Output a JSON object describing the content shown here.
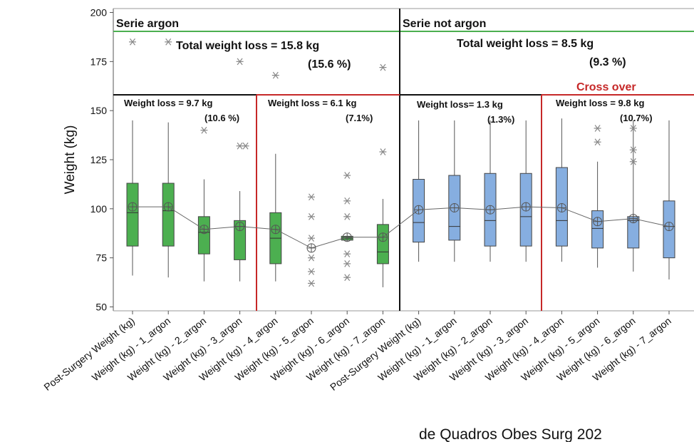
{
  "chart_data": {
    "type": "box",
    "ylabel": "Weight (kg)",
    "ylim": [
      48,
      202
    ],
    "yticks": [
      50,
      75,
      100,
      125,
      150,
      175,
      200
    ],
    "categories": [
      "Post-Surgery Weight (kg)",
      "Weight (kg) - 1_argon",
      "Weight (kg) - 2_argon",
      "Weight (kg) - 3_argon",
      "Weight (kg) - 4_argon",
      "Weight (kg) - 5_argon",
      "Weight (kg) - 6_argon",
      "Weight (kg) - 7_argon",
      "Post-Surgery Weight (kg)",
      "Weight (kg) - 1_argon",
      "Weight (kg) - 2_argon",
      "Weight (kg) - 3_argon",
      "Weight (kg) - 4_argon",
      "Weight (kg) - 5_argon",
      "Weight (kg) - 6_argon",
      "Weight (kg) - 7_argon"
    ],
    "colors": {
      "argon_box": "#4CAF50",
      "not_argon_box": "#86AEE0",
      "green_line": "#4CAF50",
      "red_line": "#C62828",
      "black_line": "#111111",
      "whisker": "#555555",
      "outlier": "#888888",
      "mean_line": "#666666",
      "cross_over_text": "#C62828"
    },
    "boxes": [
      {
        "group": "argon",
        "wlo": 66,
        "q1": 81,
        "median": 98,
        "q3": 113,
        "whi": 145,
        "mean": 101,
        "outliers": [
          185
        ]
      },
      {
        "group": "argon",
        "wlo": 65,
        "q1": 81,
        "median": 99,
        "q3": 113,
        "whi": 144,
        "mean": 101,
        "outliers": [
          185
        ]
      },
      {
        "group": "argon",
        "wlo": 63,
        "q1": 77,
        "median": 88,
        "q3": 96,
        "whi": 115,
        "mean": 89.5,
        "outliers": [
          140
        ]
      },
      {
        "group": "argon",
        "wlo": 63,
        "q1": 74,
        "median": 91,
        "q3": 94,
        "whi": 109,
        "mean": 91,
        "outliers": [
          175,
          132,
          132
        ]
      },
      {
        "group": "argon",
        "wlo": 63,
        "q1": 72,
        "median": 85,
        "q3": 98,
        "whi": 128,
        "mean": 89.5,
        "outliers": [
          168
        ]
      },
      {
        "group": "argon",
        "wlo": null,
        "q1": null,
        "median": 80,
        "q3": null,
        "whi": null,
        "mean": 80,
        "outliers": [
          106,
          96,
          85,
          75,
          68,
          62
        ]
      },
      {
        "group": "argon",
        "wlo": null,
        "q1": 84,
        "median": 85,
        "q3": 86,
        "whi": null,
        "mean": 85.5,
        "outliers": [
          117,
          104,
          96,
          77,
          72,
          65
        ]
      },
      {
        "group": "argon",
        "wlo": 60,
        "q1": 72,
        "median": 78,
        "q3": 92,
        "whi": 105,
        "mean": 85.5,
        "outliers": [
          172,
          129
        ]
      },
      {
        "group": "not_argon",
        "wlo": 73,
        "q1": 83,
        "median": 93,
        "q3": 115,
        "whi": 145,
        "mean": 99.5,
        "outliers": []
      },
      {
        "group": "not_argon",
        "wlo": 73,
        "q1": 84,
        "median": 91,
        "q3": 117,
        "whi": 145,
        "mean": 100.5,
        "outliers": []
      },
      {
        "group": "not_argon",
        "wlo": 73,
        "q1": 81,
        "median": 94,
        "q3": 118,
        "whi": 145,
        "mean": 99.5,
        "outliers": []
      },
      {
        "group": "not_argon",
        "wlo": 73,
        "q1": 81,
        "median": 96,
        "q3": 118,
        "whi": 145,
        "mean": 101,
        "outliers": []
      },
      {
        "group": "not_argon",
        "wlo": 73,
        "q1": 81,
        "median": 94,
        "q3": 121,
        "whi": 146,
        "mean": 100.5,
        "outliers": []
      },
      {
        "group": "not_argon",
        "wlo": 70,
        "q1": 80,
        "median": 90,
        "q3": 99,
        "whi": 124,
        "mean": 93.5,
        "outliers": [
          141,
          134
        ]
      },
      {
        "group": "not_argon",
        "wlo": 68,
        "q1": 80,
        "median": 94,
        "q3": 96,
        "whi": 145,
        "mean": 95,
        "outliers": [
          141,
          130,
          124
        ]
      },
      {
        "group": "not_argon",
        "wlo": 64,
        "q1": 75,
        "median": 91,
        "q3": 104,
        "whi": 145,
        "mean": 91,
        "outliers": []
      }
    ],
    "annotations": {
      "serie_argon": "Serie argon",
      "serie_not_argon": "Serie not argon",
      "total_argon": "Total weight loss = 15.8 kg",
      "total_argon_pct": "(15.6 %)",
      "total_not_argon": "Total weight loss = 8.5 kg",
      "total_not_argon_pct": "(9.3 %)",
      "cross_over": "Cross over",
      "wl1": "Weight loss =  9.7  kg",
      "wl1_pct": "(10.6 %)",
      "wl2": "Weight loss = 6.1 kg",
      "wl2_pct": "(7.1%)",
      "wl3": "Weight loss= 1.3 kg",
      "wl3_pct": "(1.3%)",
      "wl4": "Weight loss = 9.8 kg",
      "wl4_pct": "(10.7%)"
    }
  },
  "citation": "de Quadros Obes Surg 202"
}
